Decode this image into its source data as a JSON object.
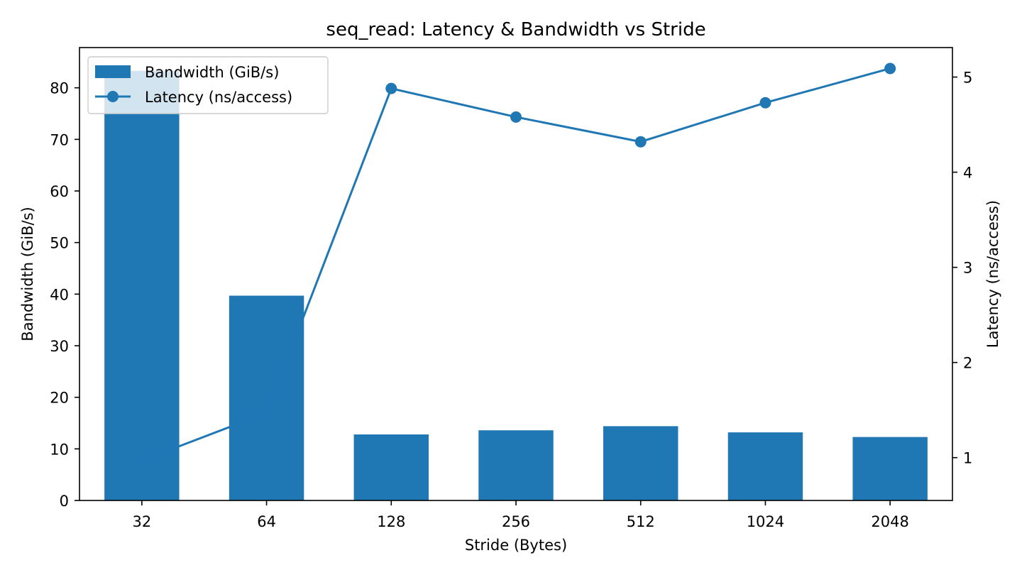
{
  "chart_data": {
    "type": "bar+line",
    "title": "seq_read: Latency & Bandwidth vs Stride",
    "xlabel": "Stride (Bytes)",
    "ylabel_left": "Bandwidth (GiB/s)",
    "ylabel_right": "Latency (ns/access)",
    "categories": [
      "32",
      "64",
      "128",
      "256",
      "512",
      "1024",
      "2048"
    ],
    "series": [
      {
        "name": "Bandwidth (GiB/s)",
        "type": "bar",
        "axis": "left",
        "color": "#1f77b4",
        "values": [
          83.3,
          39.7,
          12.8,
          13.6,
          14.4,
          13.2,
          12.3
        ]
      },
      {
        "name": "Latency (ns/access)",
        "type": "line",
        "axis": "right",
        "color": "#1f77b4",
        "values": [
          0.97,
          1.47,
          4.88,
          4.58,
          4.32,
          4.73,
          5.09
        ]
      }
    ],
    "ylim_left": [
      0,
      87.8
    ],
    "yticks_left": [
      0,
      10,
      20,
      30,
      40,
      50,
      60,
      70,
      80
    ],
    "ylim_right": [
      0.55,
      5.31
    ],
    "yticks_right": [
      1,
      2,
      3,
      4,
      5
    ],
    "grid": false,
    "legend": "top-left"
  }
}
